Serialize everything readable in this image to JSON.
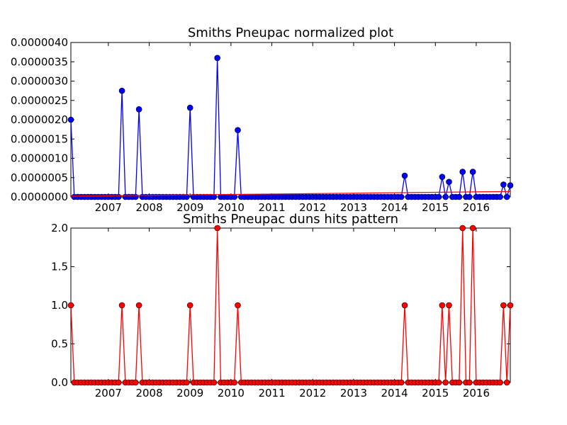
{
  "chart_data": [
    {
      "type": "line",
      "title": "Smiths Pneupac normalized plot",
      "xlabel": "",
      "ylabel": "",
      "x_ticks": [
        "2007",
        "2008",
        "2009",
        "2010",
        "2011",
        "2012",
        "2013",
        "2014",
        "2015",
        "2016"
      ],
      "y_ticks": [
        "0.0000000",
        "0.0000005",
        "0.0000010",
        "0.0000015",
        "0.0000020",
        "0.0000025",
        "0.0000030",
        "0.0000035",
        "0.0000040"
      ],
      "xlim": [
        "2006-02",
        "2016-11"
      ],
      "ylim": [
        0,
        4e-06
      ],
      "grid": false,
      "series": [
        {
          "color": "#0000ff",
          "marker": "circle",
          "points": [
            [
              "2006-02",
              2e-06
            ],
            [
              "2007-05",
              2.75e-06
            ],
            [
              "2007-10",
              2.27e-06
            ],
            [
              "2009-01",
              2.31e-06
            ],
            [
              "2009-09",
              3.6e-06
            ],
            [
              "2010-03",
              1.73e-06
            ],
            [
              "2014-04",
              5.5e-07
            ],
            [
              "2015-03",
              5.2e-07
            ],
            [
              "2015-05",
              3.9e-07
            ],
            [
              "2015-09",
              6.5e-07
            ],
            [
              "2015-12",
              6.5e-07
            ],
            [
              "2016-09",
              3.2e-07
            ],
            [
              "2016-11",
              3e-07
            ]
          ],
          "baseline": 0
        },
        {
          "color": "#ff0000",
          "kind": "trend-line",
          "points": [
            [
              "2006-02",
              2e-08
            ],
            [
              "2016-11",
              1.4e-07
            ]
          ]
        }
      ]
    },
    {
      "type": "line",
      "title": "Smiths Pneupac duns hits pattern",
      "xlabel": "",
      "ylabel": "",
      "x_ticks": [
        "2007",
        "2008",
        "2009",
        "2010",
        "2011",
        "2012",
        "2013",
        "2014",
        "2015",
        "2016"
      ],
      "y_ticks": [
        "0.0",
        "0.5",
        "1.0",
        "1.5",
        "2.0"
      ],
      "xlim": [
        "2006-02",
        "2016-11"
      ],
      "ylim": [
        0,
        2
      ],
      "grid": false,
      "series": [
        {
          "color": "#ff0000",
          "marker": "circle",
          "points": [
            [
              "2006-02",
              1
            ],
            [
              "2007-05",
              1
            ],
            [
              "2007-10",
              1
            ],
            [
              "2009-01",
              1
            ],
            [
              "2009-09",
              2
            ],
            [
              "2010-03",
              1
            ],
            [
              "2014-04",
              1
            ],
            [
              "2015-03",
              1
            ],
            [
              "2015-05",
              1
            ],
            [
              "2015-09",
              2
            ],
            [
              "2015-12",
              2
            ],
            [
              "2016-09",
              1
            ],
            [
              "2016-11",
              1
            ]
          ],
          "baseline": 0
        }
      ]
    }
  ]
}
